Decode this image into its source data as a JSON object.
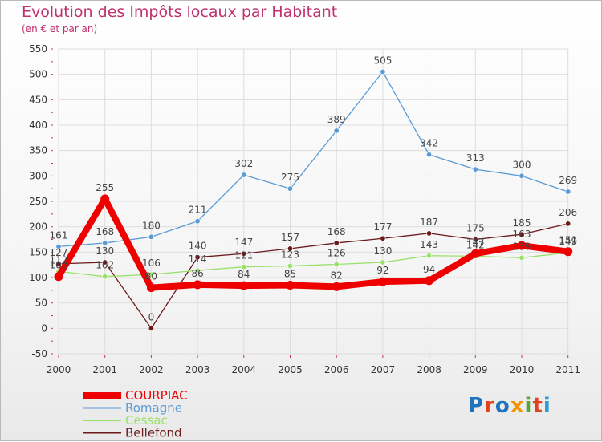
{
  "brand": {
    "letters": [
      "P",
      "r",
      "o",
      "x",
      "i",
      "t",
      "i"
    ]
  },
  "chart_data": {
    "type": "line",
    "title": "Evolution des Impôts locaux par Habitant",
    "subtitle": "(en € et par an)",
    "categories": [
      "2000",
      "2001",
      "2002",
      "2003",
      "2004",
      "2005",
      "2006",
      "2007",
      "2008",
      "2009",
      "2010",
      "2011"
    ],
    "ylim": [
      -50,
      550
    ],
    "yticks": [
      -50,
      0,
      50,
      100,
      150,
      200,
      250,
      300,
      350,
      400,
      450,
      500,
      550
    ],
    "grid": true,
    "legend_position": "bottom-left",
    "series": [
      {
        "name": "COURPIAC",
        "color": "#ee0000",
        "values": [
          102,
          255,
          80,
          86,
          84,
          85,
          82,
          92,
          94,
          147,
          163,
          151
        ]
      },
      {
        "name": "Romagne",
        "color": "#5b9bd5",
        "values": [
          161,
          168,
          180,
          211,
          302,
          275,
          389,
          505,
          342,
          313,
          300,
          269
        ]
      },
      {
        "name": "Cessac",
        "color": "#99e06a",
        "values": [
          112,
          102,
          106,
          114,
          121,
          123,
          126,
          130,
          143,
          142,
          139,
          149
        ]
      },
      {
        "name": "Bellefond",
        "color": "#6b1b1b",
        "values": [
          127,
          130,
          0,
          140,
          147,
          157,
          168,
          177,
          187,
          175,
          185,
          206
        ]
      }
    ]
  }
}
